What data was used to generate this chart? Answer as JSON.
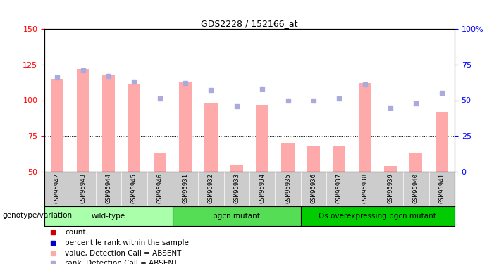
{
  "title": "GDS2228 / 152166_at",
  "samples": [
    "GSM95942",
    "GSM95943",
    "GSM95944",
    "GSM95945",
    "GSM95946",
    "GSM95931",
    "GSM95932",
    "GSM95933",
    "GSM95934",
    "GSM95935",
    "GSM95936",
    "GSM95937",
    "GSM95938",
    "GSM95939",
    "GSM95940",
    "GSM95941"
  ],
  "bar_values": [
    115,
    122,
    118,
    111,
    63,
    113,
    98,
    55,
    97,
    70,
    68,
    68,
    112,
    54,
    63,
    92
  ],
  "dot_values": [
    116,
    121,
    117,
    113,
    101,
    112,
    107,
    96,
    108,
    100,
    100,
    101,
    111,
    95,
    98,
    105
  ],
  "ylim_left": [
    50,
    150
  ],
  "ylim_right": [
    0,
    100
  ],
  "yticks_left": [
    50,
    75,
    100,
    125,
    150
  ],
  "yticks_right": [
    0,
    25,
    50,
    75,
    100
  ],
  "ytick_labels_right": [
    "0",
    "25",
    "50",
    "75",
    "100%"
  ],
  "groups": [
    {
      "label": "wild-type",
      "start": 0,
      "end": 5,
      "color": "#aaffaa"
    },
    {
      "label": "bgcn mutant",
      "start": 5,
      "end": 10,
      "color": "#55dd55"
    },
    {
      "label": "Os overexpressing bgcn mutant",
      "start": 10,
      "end": 16,
      "color": "#00cc00"
    }
  ],
  "bar_color_absent": "#ffaaaa",
  "dot_color_absent": "#aaaadd",
  "bg_color": "#cccccc",
  "legend_items": [
    {
      "color": "#cc0000",
      "label": "count"
    },
    {
      "color": "#0000cc",
      "label": "percentile rank within the sample"
    },
    {
      "color": "#ffaaaa",
      "label": "value, Detection Call = ABSENT"
    },
    {
      "color": "#aaaadd",
      "label": "rank, Detection Call = ABSENT"
    }
  ],
  "baseline": 50,
  "hlines": [
    75,
    100,
    125
  ],
  "group_label": "genotype/variation"
}
